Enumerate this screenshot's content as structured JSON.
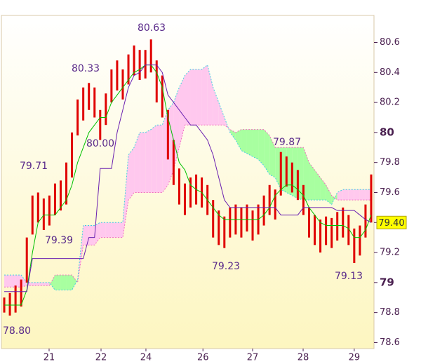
{
  "chart_data": {
    "type": "ichimoku",
    "xlim": [
      0,
      66
    ],
    "ylim": [
      78.56,
      80.78
    ],
    "xticks": [
      {
        "value": 8.45,
        "label": "21"
      },
      {
        "value": 17.65,
        "label": "22"
      },
      {
        "value": 25.6,
        "label": "24"
      },
      {
        "value": 35.7,
        "label": "26"
      },
      {
        "value": 44.5,
        "label": "27"
      },
      {
        "value": 53.45,
        "label": "28"
      },
      {
        "value": 62.5,
        "label": "29"
      }
    ],
    "yticks": [
      78.6,
      78.8,
      79,
      79.2,
      79.4,
      79.6,
      79.8,
      80,
      80.2,
      80.4,
      80.6
    ],
    "bars": {
      "color": "#e00000",
      "high": [
        78.9,
        78.93,
        78.98,
        79.02,
        79.3,
        79.58,
        79.6,
        79.56,
        79.58,
        79.66,
        79.68,
        79.8,
        80.0,
        80.22,
        80.3,
        80.33,
        80.3,
        80.15,
        80.26,
        80.42,
        80.48,
        80.42,
        80.52,
        80.58,
        80.55,
        80.55,
        80.62,
        80.48,
        80.38,
        80.15,
        79.95,
        79.76,
        79.66,
        79.7,
        79.72,
        79.7,
        79.65,
        79.55,
        79.48,
        79.44,
        79.5,
        79.52,
        79.5,
        79.52,
        79.48,
        79.52,
        79.58,
        79.65,
        79.62,
        79.87,
        79.84,
        79.8,
        79.75,
        79.65,
        79.5,
        79.45,
        79.42,
        79.44,
        79.43,
        79.47,
        79.5,
        79.45,
        79.36,
        79.38,
        79.52,
        79.72
      ],
      "low": [
        78.8,
        78.78,
        78.8,
        78.84,
        79.0,
        79.32,
        79.4,
        79.35,
        79.38,
        79.45,
        79.48,
        79.52,
        79.7,
        79.98,
        80.08,
        80.15,
        80.1,
        79.95,
        80.05,
        80.2,
        80.28,
        80.22,
        80.32,
        80.38,
        80.35,
        80.36,
        80.4,
        80.2,
        80.1,
        79.82,
        79.65,
        79.52,
        79.45,
        79.5,
        79.52,
        79.5,
        79.45,
        79.3,
        79.25,
        79.23,
        79.3,
        79.32,
        79.3,
        79.34,
        79.28,
        79.32,
        79.38,
        79.45,
        79.42,
        79.58,
        79.64,
        79.6,
        79.55,
        79.45,
        79.3,
        79.25,
        79.2,
        79.25,
        79.23,
        79.28,
        79.3,
        79.25,
        79.13,
        79.18,
        79.3,
        79.4
      ]
    },
    "series": [
      {
        "name": "tenkan",
        "color": "#00c000",
        "values": [
          78.85,
          78.85,
          78.85,
          78.85,
          78.95,
          79.2,
          79.4,
          79.45,
          79.45,
          79.45,
          79.5,
          79.55,
          79.65,
          79.8,
          79.9,
          80.0,
          80.05,
          80.1,
          80.1,
          80.2,
          80.25,
          80.3,
          80.35,
          80.4,
          80.42,
          80.45,
          80.45,
          80.4,
          80.3,
          80.1,
          79.95,
          79.8,
          79.75,
          79.65,
          79.62,
          79.6,
          79.55,
          79.5,
          79.45,
          79.42,
          79.42,
          79.42,
          79.42,
          79.42,
          79.42,
          79.42,
          79.45,
          79.5,
          79.58,
          79.62,
          79.65,
          79.65,
          79.62,
          79.58,
          79.5,
          79.45,
          79.4,
          79.38,
          79.38,
          79.38,
          79.38,
          79.36,
          79.3,
          79.3,
          79.35,
          79.45
        ]
      },
      {
        "name": "kijun",
        "color": "#6a1fb0",
        "values": [
          78.94,
          78.94,
          78.94,
          78.94,
          78.94,
          79.16,
          79.16,
          79.16,
          79.16,
          79.16,
          79.16,
          79.16,
          79.16,
          79.16,
          79.16,
          79.3,
          79.3,
          79.76,
          79.76,
          79.76,
          80.0,
          80.15,
          80.3,
          80.38,
          80.4,
          80.45,
          80.45,
          80.45,
          80.4,
          80.25,
          80.2,
          80.15,
          80.1,
          80.05,
          80.05,
          80.0,
          79.95,
          79.85,
          79.7,
          79.55,
          79.5,
          79.5,
          79.5,
          79.5,
          79.5,
          79.5,
          79.5,
          79.5,
          79.5,
          79.45,
          79.45,
          79.45,
          79.45,
          79.5,
          79.5,
          79.5,
          79.5,
          79.5,
          79.5,
          79.48,
          79.48,
          79.48,
          79.48,
          79.45,
          79.42,
          79.4
        ]
      }
    ],
    "cloud": {
      "up_color": "#a8ffa0",
      "down_color": "#ffc8ee",
      "span_a": [
        78.97,
        78.97,
        78.97,
        78.97,
        78.98,
        78.98,
        78.98,
        78.98,
        78.98,
        79.05,
        79.05,
        79.05,
        79.05,
        79.0,
        79.25,
        79.25,
        79.25,
        79.3,
        79.3,
        79.3,
        79.3,
        79.3,
        79.55,
        79.6,
        79.6,
        79.6,
        79.6,
        79.6,
        79.6,
        79.65,
        79.75,
        79.9,
        80.05,
        80.05,
        80.05,
        80.05,
        80.05,
        80.05,
        80.05,
        80.05,
        80.02,
        80.0,
        80.02,
        80.02,
        80.02,
        80.02,
        80.02,
        79.98,
        79.9,
        79.9,
        79.9,
        79.9,
        79.9,
        79.9,
        79.8,
        79.75,
        79.7,
        79.65,
        79.58,
        79.55,
        79.55,
        79.55,
        79.55,
        79.55,
        79.55,
        79.55
      ],
      "span_b": [
        79.05,
        79.05,
        79.05,
        79.05,
        79.0,
        79.0,
        79.0,
        79.0,
        79.0,
        78.95,
        78.95,
        78.95,
        78.95,
        79.02,
        79.38,
        79.38,
        79.38,
        79.4,
        79.4,
        79.4,
        79.4,
        79.4,
        79.85,
        79.9,
        80.0,
        80.0,
        80.02,
        80.05,
        80.05,
        80.15,
        80.2,
        80.3,
        80.38,
        80.42,
        80.42,
        80.42,
        80.45,
        80.3,
        80.2,
        80.1,
        80.0,
        79.95,
        79.88,
        79.86,
        79.84,
        79.82,
        79.78,
        79.72,
        79.7,
        79.62,
        79.6,
        79.58,
        79.56,
        79.55,
        79.55,
        79.55,
        79.55,
        79.55,
        79.52,
        79.6,
        79.62,
        79.62,
        79.62,
        79.62,
        79.62,
        79.62
      ]
    },
    "last_price": {
      "value": 79.4,
      "label": "79.40"
    },
    "annotations": [
      "80.63",
      "80.33",
      "80.00",
      "79.71",
      "79.39",
      "79.23",
      "79.87",
      "79.13",
      "78.80"
    ]
  }
}
